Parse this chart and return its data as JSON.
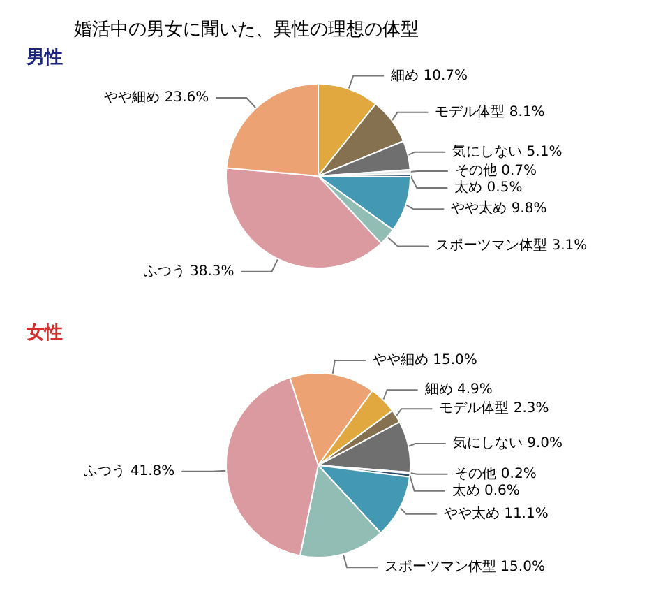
{
  "chart_data": [
    {
      "type": "pie",
      "title": "婚活中の男女に聞いた、異性の理想の体型",
      "subtitle": "男性",
      "categories": [
        "細め",
        "モデル体型",
        "気にしない",
        "その他",
        "太め",
        "やや太め",
        "スポーツマン体型",
        "ふつう",
        "やや細め"
      ],
      "values": [
        10.7,
        8.1,
        5.1,
        0.7,
        0.5,
        9.8,
        3.1,
        38.3,
        23.6
      ],
      "value_labels": [
        "10.7%",
        "8.1%",
        "5.1%",
        "0.7%",
        "0.5%",
        "9.8%",
        "3.1%",
        "38.3%",
        "23.6%"
      ],
      "colors": [
        "#e0a83e",
        "#85704f",
        "#6f6f6f",
        "#e6e6e6",
        "#2a4a6a",
        "#4399b3",
        "#92bdb4",
        "#db99a0",
        "#eda274"
      ]
    },
    {
      "type": "pie",
      "title": "女性",
      "categories": [
        "やや細め",
        "細め",
        "モデル体型",
        "気にしない",
        "その他",
        "太め",
        "やや太め",
        "スポーツマン体型",
        "ふつう"
      ],
      "values": [
        15.0,
        4.9,
        2.3,
        9.0,
        0.2,
        0.6,
        11.1,
        15.0,
        41.8
      ],
      "value_labels": [
        "15.0%",
        "4.9%",
        "2.3%",
        "9.0%",
        "0.2%",
        "0.6%",
        "11.1%",
        "15.0%",
        "41.8%"
      ],
      "colors": [
        "#eda274",
        "#e0a83e",
        "#85704f",
        "#6f6f6f",
        "#e6e6e6",
        "#2a4a6a",
        "#4399b3",
        "#92bdb4",
        "#db99a0"
      ]
    }
  ]
}
